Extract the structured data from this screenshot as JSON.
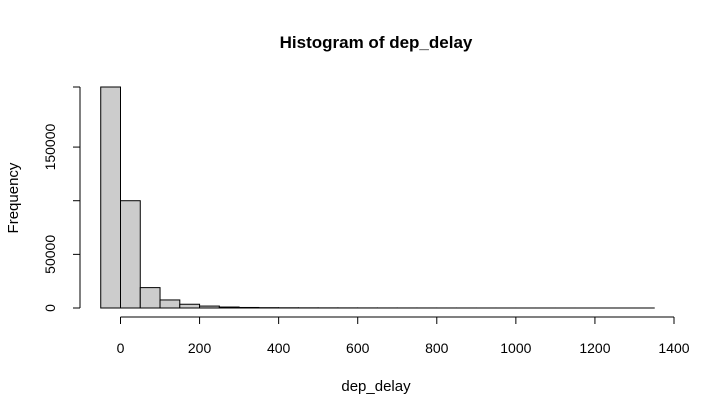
{
  "chart_data": {
    "type": "bar",
    "title": "Histogram of dep_delay",
    "xlabel": "dep_delay",
    "ylabel": "Frequency",
    "bin_width": 50,
    "bins_start": -50,
    "counts": [
      206000,
      100000,
      19000,
      7500,
      3500,
      1800,
      900,
      500,
      300,
      200,
      150,
      120,
      100,
      80,
      60,
      50,
      40,
      30,
      25,
      20,
      15,
      12,
      10,
      8,
      6,
      5,
      4,
      3
    ],
    "bar_fill": "#cccccc",
    "bar_stroke": "#000000",
    "xlim": [
      -50,
      1400
    ],
    "ylim": [
      0,
      206000
    ],
    "x_ticks": [
      0,
      200,
      400,
      600,
      800,
      1000,
      1200,
      1400
    ],
    "y_ticks": [
      0,
      50000,
      150000
    ]
  }
}
